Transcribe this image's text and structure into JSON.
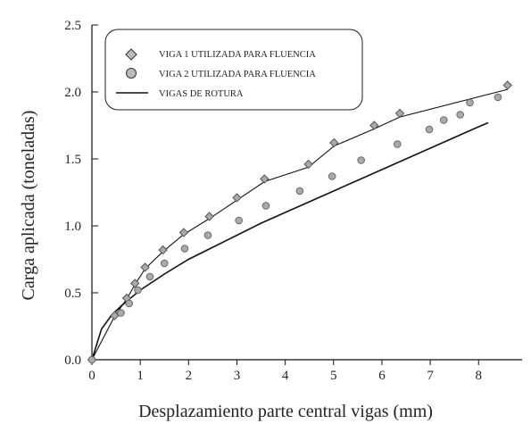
{
  "chart_data": {
    "type": "scatter",
    "title": "",
    "xlabel": "Desplazamiento parte central vigas (mm)",
    "ylabel": "Carga aplicada (toneladas)",
    "xlim": [
      0,
      8.9
    ],
    "ylim": [
      0,
      2.5
    ],
    "x_ticks": [
      0,
      1,
      2,
      3,
      4,
      5,
      6,
      7,
      8
    ],
    "y_ticks": [
      "0.0",
      "0.5",
      "1.0",
      "1.5",
      "2.0",
      "2.5"
    ],
    "grid": false,
    "legend_position": "top-left",
    "series": [
      {
        "name": "VIGA 1 UTILIZADA PARA FLUENCIA",
        "kind": "scatter",
        "marker": "diamond",
        "color": "#555555",
        "x": [
          0,
          0.47,
          0.72,
          0.89,
          1.1,
          1.47,
          1.9,
          2.43,
          3.0,
          3.57,
          4.48,
          5.01,
          5.84,
          6.37,
          8.6
        ],
        "y": [
          0,
          0.33,
          0.46,
          0.57,
          0.69,
          0.82,
          0.95,
          1.07,
          1.21,
          1.35,
          1.46,
          1.62,
          1.75,
          1.84,
          2.05
        ]
      },
      {
        "name": "VIGA 2 UTILIZADA PARA FLUENCIA",
        "kind": "scatter",
        "marker": "circle",
        "color": "#666666",
        "x": [
          0,
          0.6,
          0.77,
          0.95,
          1.2,
          1.5,
          1.92,
          2.4,
          3.04,
          3.6,
          4.3,
          4.97,
          5.57,
          6.32,
          6.98,
          7.28,
          7.62,
          7.82,
          8.4
        ],
        "y": [
          0,
          0.35,
          0.42,
          0.52,
          0.62,
          0.72,
          0.83,
          0.93,
          1.04,
          1.15,
          1.26,
          1.37,
          1.49,
          1.61,
          1.72,
          1.79,
          1.83,
          1.92,
          1.96
        ]
      },
      {
        "name": "VIGAS DE ROTURA",
        "kind": "line",
        "color": "#111111",
        "x": [
          0,
          0.2,
          0.4,
          0.6,
          0.8,
          1,
          1.5,
          2,
          2.5,
          3,
          3.5,
          4,
          4.5,
          5,
          5.5,
          6,
          6.5,
          7,
          7.5,
          8,
          8.2
        ],
        "y": [
          0,
          0.23,
          0.33,
          0.4,
          0.46,
          0.52,
          0.64,
          0.75,
          0.84,
          0.93,
          1.02,
          1.1,
          1.18,
          1.26,
          1.34,
          1.42,
          1.5,
          1.58,
          1.66,
          1.74,
          1.77
        ]
      }
    ]
  }
}
